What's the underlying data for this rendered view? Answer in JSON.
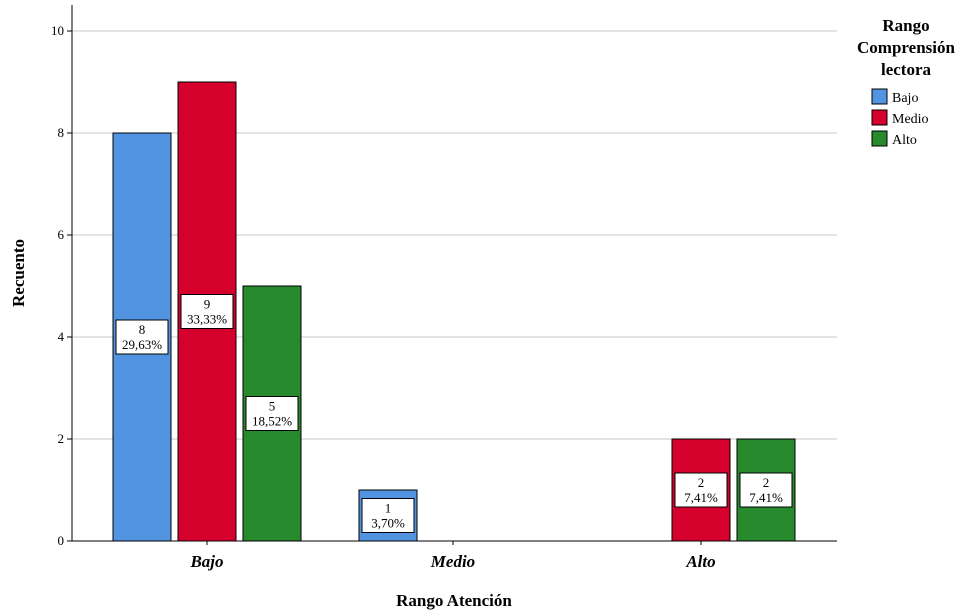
{
  "chart_data": {
    "type": "bar",
    "xlabel": "Rango Atención",
    "ylabel": "Recuento",
    "categories": [
      "Bajo",
      "Medio",
      "Alto"
    ],
    "ylim": [
      0,
      10.5
    ],
    "yticks": [
      0,
      2,
      4,
      6,
      8,
      10
    ],
    "grid": true,
    "legend": {
      "title_lines": [
        "Rango",
        "Comprensión",
        "lectora"
      ],
      "placement": "right"
    },
    "series": [
      {
        "name": "Bajo",
        "color": "#5294e2",
        "values": [
          8,
          1,
          null
        ],
        "labels": [
          "8",
          "1",
          null
        ],
        "percents": [
          "29,63%",
          "3,70%",
          null
        ]
      },
      {
        "name": "Medio",
        "color": "#d5002c",
        "values": [
          9,
          null,
          2
        ],
        "labels": [
          "9",
          null,
          "2"
        ],
        "percents": [
          "33,33%",
          null,
          "7,41%"
        ]
      },
      {
        "name": "Alto",
        "color": "#278a2d",
        "values": [
          5,
          null,
          2
        ],
        "labels": [
          "5",
          null,
          "2"
        ],
        "percents": [
          "18,52%",
          null,
          "7,41%"
        ]
      }
    ]
  }
}
